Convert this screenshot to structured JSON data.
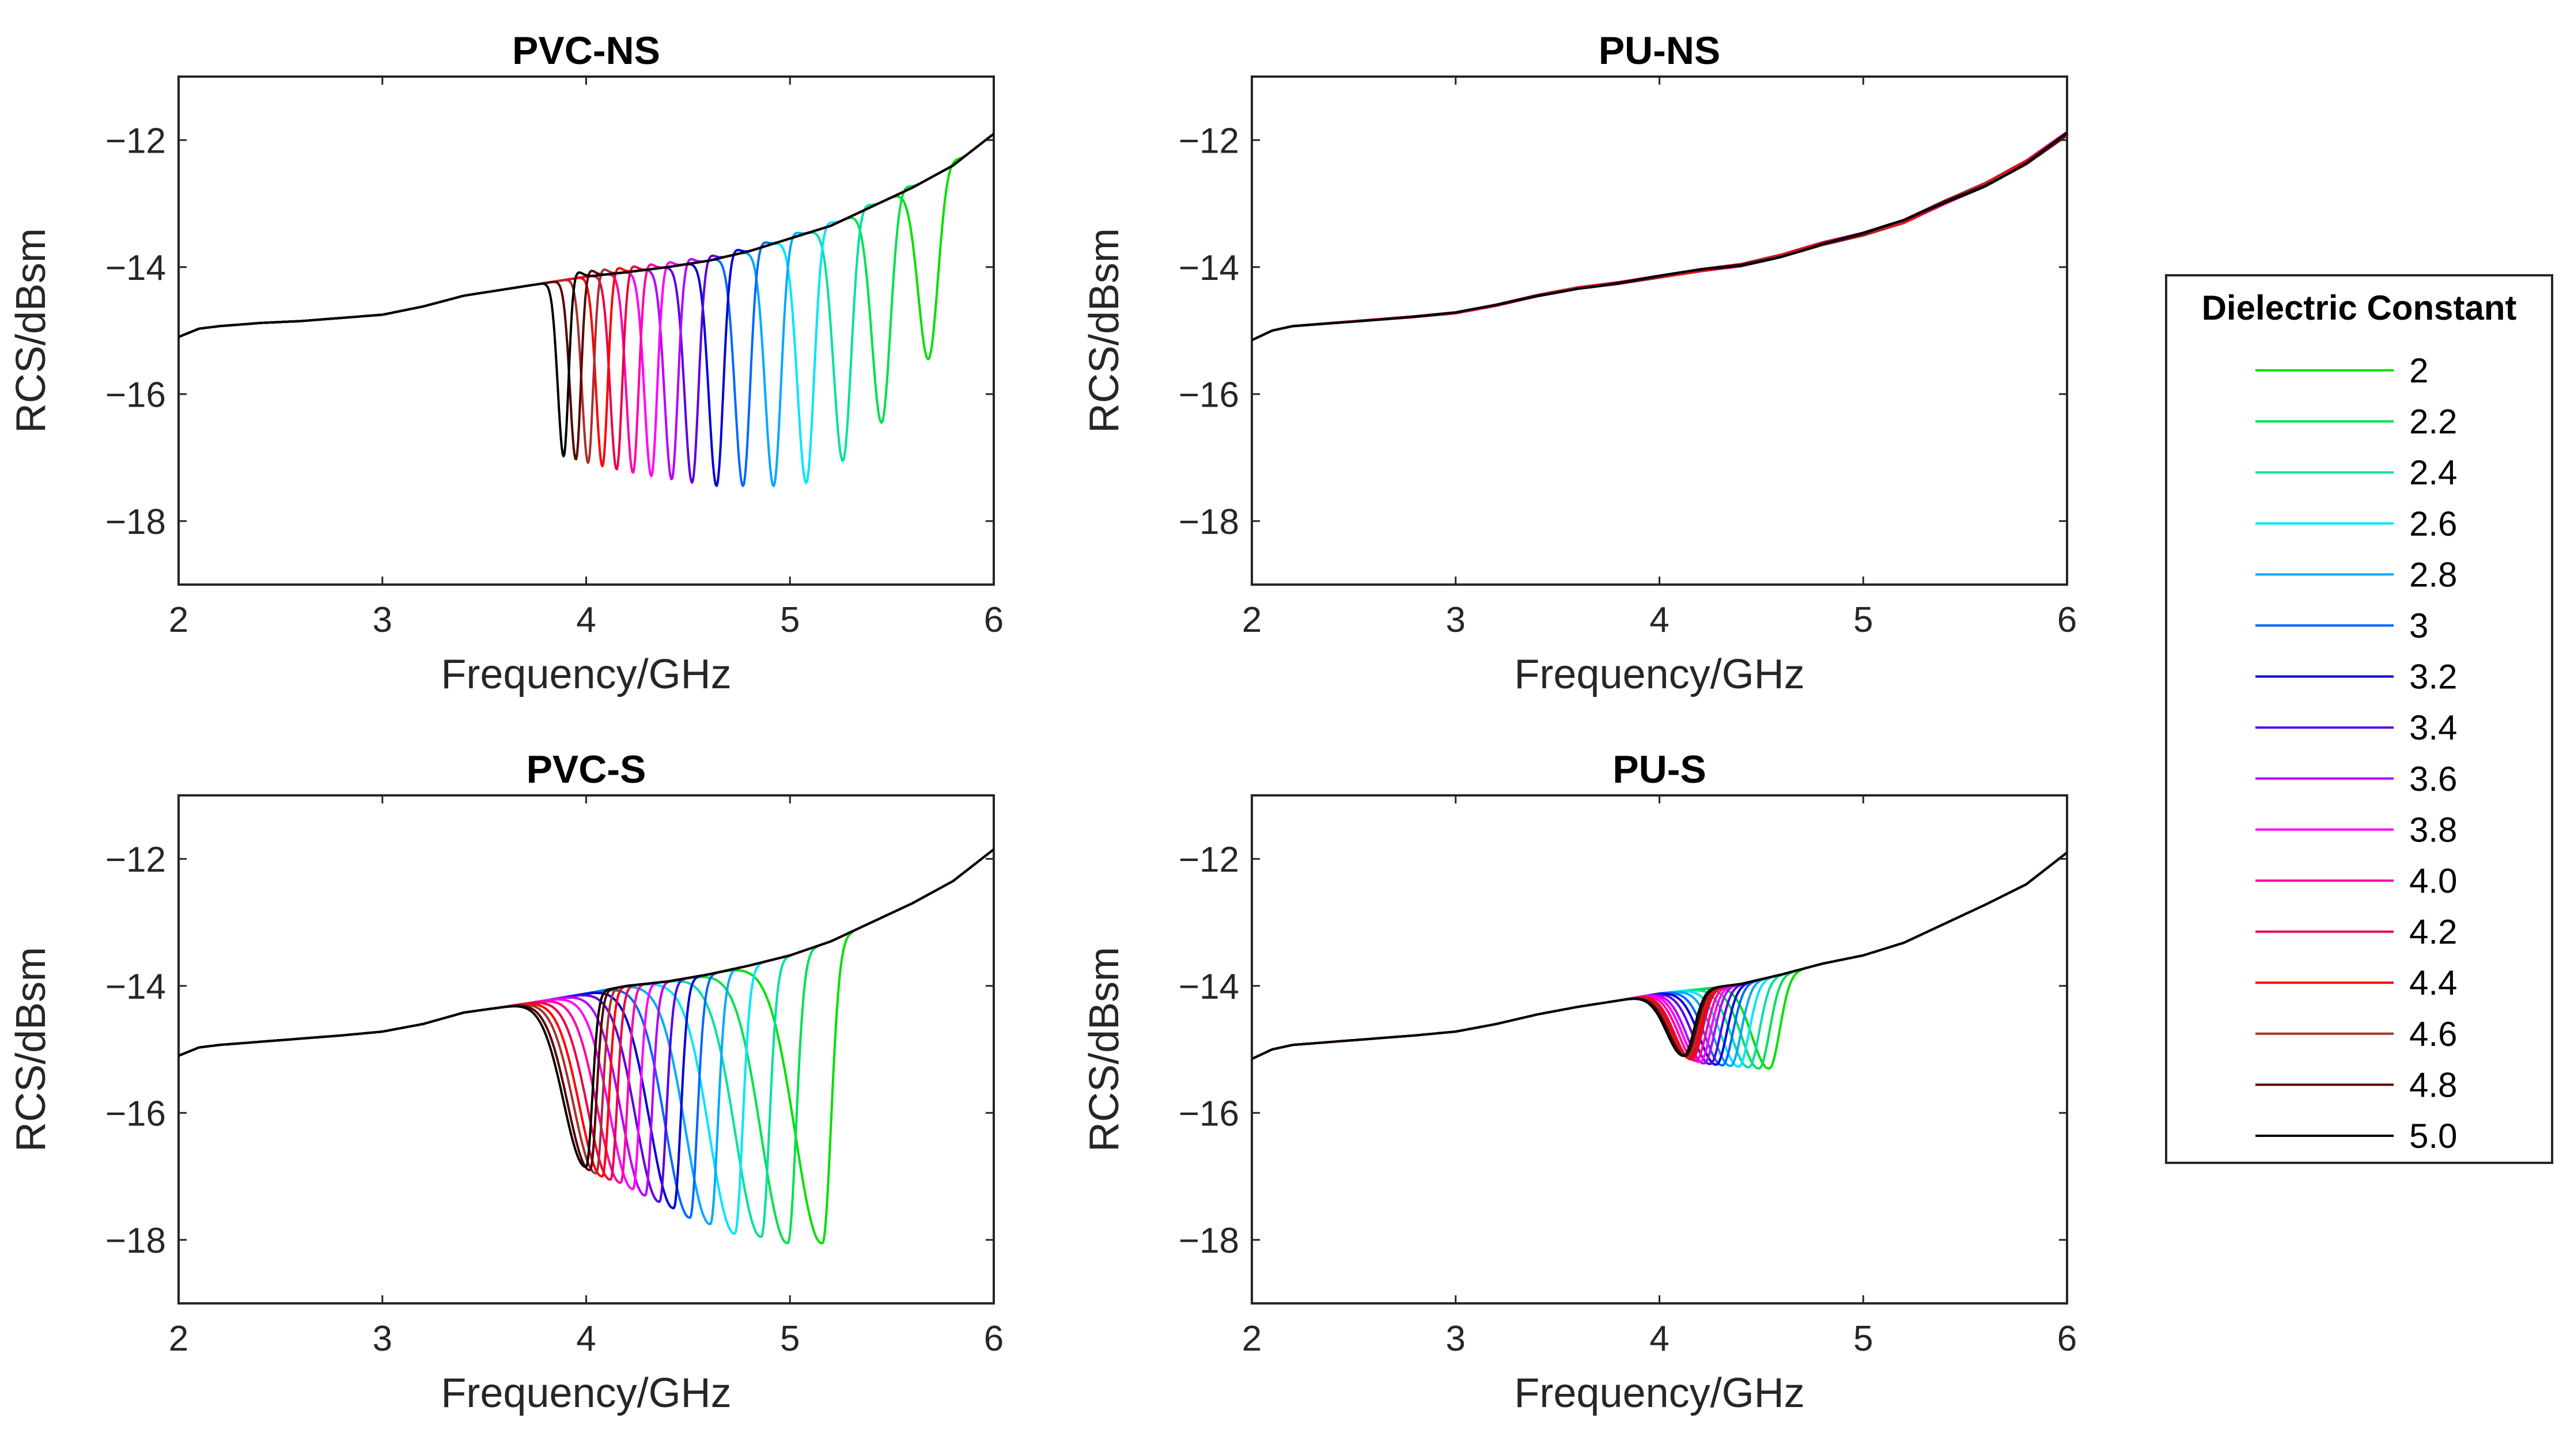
{
  "figure": {
    "ylabel": "RCS/dBsm",
    "xlabel": "Frequency/GHz"
  },
  "legend": {
    "title": "Dielectric Constant",
    "entries": [
      {
        "label": "2",
        "color": "#00e000"
      },
      {
        "label": "2.2",
        "color": "#00e050"
      },
      {
        "label": "2.4",
        "color": "#00e0a0"
      },
      {
        "label": "2.6",
        "color": "#00e5ff"
      },
      {
        "label": "2.8",
        "color": "#00a8ff"
      },
      {
        "label": "3",
        "color": "#0068ff"
      },
      {
        "label": "3.2",
        "color": "#0000d8"
      },
      {
        "label": "3.4",
        "color": "#5a00e0"
      },
      {
        "label": "3.6",
        "color": "#b400ff"
      },
      {
        "label": "3.8",
        "color": "#ff00ff"
      },
      {
        "label": "4.0",
        "color": "#ff00a8"
      },
      {
        "label": "4.2",
        "color": "#e8004a"
      },
      {
        "label": "4.4",
        "color": "#ff0000"
      },
      {
        "label": "4.6",
        "color": "#a83030"
      },
      {
        "label": "4.8",
        "color": "#5a0000"
      },
      {
        "label": "5.0",
        "color": "#000000"
      }
    ]
  },
  "chart_data": [
    {
      "type": "line",
      "title": "PVC-NS",
      "xlabel": "Frequency/GHz",
      "ylabel": "RCS/dBsm",
      "xlim": [
        2,
        6
      ],
      "ylim": [
        -19,
        -11
      ],
      "xticks": [
        2,
        3,
        4,
        5,
        6
      ],
      "yticks": [
        -18,
        -16,
        -14,
        -12
      ],
      "baseline": [
        [
          2.0,
          -15.1
        ],
        [
          2.1,
          -14.97
        ],
        [
          2.2,
          -14.93
        ],
        [
          2.4,
          -14.88
        ],
        [
          2.6,
          -14.85
        ],
        [
          2.8,
          -14.8
        ],
        [
          3.0,
          -14.75
        ],
        [
          3.2,
          -14.62
        ],
        [
          3.4,
          -14.45
        ],
        [
          3.6,
          -14.35
        ],
        [
          3.8,
          -14.25
        ],
        [
          4.0,
          -14.15
        ],
        [
          4.2,
          -14.08
        ],
        [
          4.4,
          -14.0
        ],
        [
          4.6,
          -13.9
        ],
        [
          4.8,
          -13.75
        ],
        [
          5.0,
          -13.55
        ],
        [
          5.2,
          -13.35
        ],
        [
          5.4,
          -13.05
        ],
        [
          5.6,
          -12.75
        ],
        [
          5.8,
          -12.4
        ],
        [
          6.0,
          -11.9
        ]
      ],
      "dip_shape": "notch",
      "series": [
        {
          "name": "2",
          "dip_freq": 5.68,
          "dip_min": -15.45
        },
        {
          "name": "2.2",
          "dip_freq": 5.45,
          "dip_min": -16.45
        },
        {
          "name": "2.4",
          "dip_freq": 5.26,
          "dip_min": -17.05
        },
        {
          "name": "2.6",
          "dip_freq": 5.08,
          "dip_min": -17.4
        },
        {
          "name": "2.8",
          "dip_freq": 4.92,
          "dip_min": -17.45
        },
        {
          "name": "3",
          "dip_freq": 4.77,
          "dip_min": -17.45
        },
        {
          "name": "3.2",
          "dip_freq": 4.64,
          "dip_min": -17.45
        },
        {
          "name": "3.4",
          "dip_freq": 4.52,
          "dip_min": -17.4
        },
        {
          "name": "3.6",
          "dip_freq": 4.42,
          "dip_min": -17.35
        },
        {
          "name": "3.8",
          "dip_freq": 4.32,
          "dip_min": -17.3
        },
        {
          "name": "4.0",
          "dip_freq": 4.23,
          "dip_min": -17.25
        },
        {
          "name": "4.2",
          "dip_freq": 4.15,
          "dip_min": -17.2
        },
        {
          "name": "4.4",
          "dip_freq": 4.08,
          "dip_min": -17.15
        },
        {
          "name": "4.6",
          "dip_freq": 4.01,
          "dip_min": -17.1
        },
        {
          "name": "4.8",
          "dip_freq": 3.95,
          "dip_min": -17.05
        },
        {
          "name": "5.0",
          "dip_freq": 3.89,
          "dip_min": -17.0
        }
      ]
    },
    {
      "type": "line",
      "title": "PU-NS",
      "xlabel": "Frequency/GHz",
      "ylabel": "RCS/dBsm",
      "xlim": [
        2,
        6
      ],
      "ylim": [
        -19,
        -11
      ],
      "xticks": [
        2,
        3,
        4,
        5,
        6
      ],
      "yticks": [
        -18,
        -16,
        -14,
        -12
      ],
      "baseline": [
        [
          2.0,
          -15.15
        ],
        [
          2.1,
          -15.0
        ],
        [
          2.2,
          -14.93
        ],
        [
          2.4,
          -14.88
        ],
        [
          2.6,
          -14.83
        ],
        [
          2.8,
          -14.78
        ],
        [
          3.0,
          -14.72
        ],
        [
          3.2,
          -14.6
        ],
        [
          3.4,
          -14.45
        ],
        [
          3.6,
          -14.33
        ],
        [
          3.8,
          -14.25
        ],
        [
          4.0,
          -14.15
        ],
        [
          4.2,
          -14.05
        ],
        [
          4.4,
          -13.97
        ],
        [
          4.6,
          -13.82
        ],
        [
          4.8,
          -13.63
        ],
        [
          5.0,
          -13.48
        ],
        [
          5.2,
          -13.28
        ],
        [
          5.4,
          -12.98
        ],
        [
          5.6,
          -12.7
        ],
        [
          5.8,
          -12.35
        ],
        [
          6.0,
          -11.9
        ]
      ],
      "dip_shape": "none",
      "series": [
        {
          "name": "2",
          "dip_freq": null,
          "dip_min": null
        },
        {
          "name": "2.2",
          "dip_freq": null,
          "dip_min": null
        },
        {
          "name": "2.4",
          "dip_freq": null,
          "dip_min": null
        },
        {
          "name": "2.6",
          "dip_freq": null,
          "dip_min": null
        },
        {
          "name": "2.8",
          "dip_freq": null,
          "dip_min": null
        },
        {
          "name": "3",
          "dip_freq": null,
          "dip_min": null
        },
        {
          "name": "3.2",
          "dip_freq": null,
          "dip_min": null
        },
        {
          "name": "3.4",
          "dip_freq": null,
          "dip_min": null
        },
        {
          "name": "3.6",
          "dip_freq": null,
          "dip_min": null
        },
        {
          "name": "3.8",
          "dip_freq": null,
          "dip_min": null
        },
        {
          "name": "4.0",
          "dip_freq": null,
          "dip_min": null
        },
        {
          "name": "4.2",
          "dip_freq": null,
          "dip_min": null
        },
        {
          "name": "4.4",
          "dip_freq": null,
          "dip_min": null
        },
        {
          "name": "4.6",
          "dip_freq": null,
          "dip_min": null
        },
        {
          "name": "4.8",
          "dip_freq": null,
          "dip_min": null
        },
        {
          "name": "5.0",
          "dip_freq": null,
          "dip_min": null
        }
      ]
    },
    {
      "type": "line",
      "title": "PVC-S",
      "xlabel": "Frequency/GHz",
      "ylabel": "RCS/dBsm",
      "xlim": [
        2,
        6
      ],
      "ylim": [
        -19,
        -11
      ],
      "xticks": [
        2,
        3,
        4,
        5,
        6
      ],
      "yticks": [
        -18,
        -16,
        -14,
        -12
      ],
      "baseline": [
        [
          2.0,
          -15.1
        ],
        [
          2.1,
          -14.97
        ],
        [
          2.2,
          -14.93
        ],
        [
          2.4,
          -14.88
        ],
        [
          2.6,
          -14.83
        ],
        [
          2.8,
          -14.78
        ],
        [
          3.0,
          -14.72
        ],
        [
          3.2,
          -14.6
        ],
        [
          3.4,
          -14.42
        ],
        [
          3.6,
          -14.33
        ],
        [
          3.8,
          -14.23
        ],
        [
          4.0,
          -14.12
        ],
        [
          4.2,
          -14.0
        ],
        [
          4.4,
          -13.93
        ],
        [
          4.6,
          -13.82
        ],
        [
          4.8,
          -13.68
        ],
        [
          5.0,
          -13.52
        ],
        [
          5.2,
          -13.3
        ],
        [
          5.4,
          -13.0
        ],
        [
          5.6,
          -12.7
        ],
        [
          5.8,
          -12.35
        ],
        [
          6.0,
          -11.85
        ]
      ],
      "dip_shape": "broad",
      "series": [
        {
          "name": "2",
          "dip_freq": 5.16,
          "dip_min": -18.05
        },
        {
          "name": "2.2",
          "dip_freq": 4.99,
          "dip_min": -18.05
        },
        {
          "name": "2.4",
          "dip_freq": 4.86,
          "dip_min": -17.95
        },
        {
          "name": "2.6",
          "dip_freq": 4.73,
          "dip_min": -17.9
        },
        {
          "name": "2.8",
          "dip_freq": 4.61,
          "dip_min": -17.75
        },
        {
          "name": "3",
          "dip_freq": 4.51,
          "dip_min": -17.65
        },
        {
          "name": "3.2",
          "dip_freq": 4.43,
          "dip_min": -17.5
        },
        {
          "name": "3.4",
          "dip_freq": 4.36,
          "dip_min": -17.4
        },
        {
          "name": "3.6",
          "dip_freq": 4.29,
          "dip_min": -17.3
        },
        {
          "name": "3.8",
          "dip_freq": 4.23,
          "dip_min": -17.2
        },
        {
          "name": "4.0",
          "dip_freq": 4.17,
          "dip_min": -17.1
        },
        {
          "name": "4.2",
          "dip_freq": 4.12,
          "dip_min": -17.05
        },
        {
          "name": "4.4",
          "dip_freq": 4.08,
          "dip_min": -17.0
        },
        {
          "name": "4.6",
          "dip_freq": 4.05,
          "dip_min": -16.95
        },
        {
          "name": "4.8",
          "dip_freq": 4.02,
          "dip_min": -16.9
        },
        {
          "name": "5.0",
          "dip_freq": 4.0,
          "dip_min": -16.85
        }
      ]
    },
    {
      "type": "line",
      "title": "PU-S",
      "xlabel": "Frequency/GHz",
      "ylabel": "RCS/dBsm",
      "xlim": [
        2,
        6
      ],
      "ylim": [
        -19,
        -11
      ],
      "xticks": [
        2,
        3,
        4,
        5,
        6
      ],
      "yticks": [
        -18,
        -16,
        -14,
        -12
      ],
      "baseline": [
        [
          2.0,
          -15.15
        ],
        [
          2.1,
          -15.0
        ],
        [
          2.2,
          -14.93
        ],
        [
          2.4,
          -14.88
        ],
        [
          2.6,
          -14.83
        ],
        [
          2.8,
          -14.78
        ],
        [
          3.0,
          -14.72
        ],
        [
          3.2,
          -14.6
        ],
        [
          3.4,
          -14.45
        ],
        [
          3.6,
          -14.33
        ],
        [
          3.8,
          -14.23
        ],
        [
          4.0,
          -14.12
        ],
        [
          4.2,
          -14.05
        ],
        [
          4.4,
          -13.97
        ],
        [
          4.6,
          -13.82
        ],
        [
          4.8,
          -13.65
        ],
        [
          5.0,
          -13.52
        ],
        [
          5.2,
          -13.32
        ],
        [
          5.4,
          -13.02
        ],
        [
          5.6,
          -12.72
        ],
        [
          5.8,
          -12.4
        ],
        [
          6.0,
          -11.9
        ]
      ],
      "dip_shape": "shallow",
      "series": [
        {
          "name": "2",
          "dip_freq": 4.54,
          "dip_min": -15.3
        },
        {
          "name": "2.2",
          "dip_freq": 4.49,
          "dip_min": -15.3
        },
        {
          "name": "2.4",
          "dip_freq": 4.44,
          "dip_min": -15.28
        },
        {
          "name": "2.6",
          "dip_freq": 4.39,
          "dip_min": -15.27
        },
        {
          "name": "2.8",
          "dip_freq": 4.35,
          "dip_min": -15.26
        },
        {
          "name": "3",
          "dip_freq": 4.31,
          "dip_min": -15.25
        },
        {
          "name": "3.2",
          "dip_freq": 4.28,
          "dip_min": -15.24
        },
        {
          "name": "3.4",
          "dip_freq": 4.25,
          "dip_min": -15.23
        },
        {
          "name": "3.6",
          "dip_freq": 4.22,
          "dip_min": -15.22
        },
        {
          "name": "3.8",
          "dip_freq": 4.2,
          "dip_min": -15.2
        },
        {
          "name": "4.0",
          "dip_freq": 4.18,
          "dip_min": -15.18
        },
        {
          "name": "4.2",
          "dip_freq": 4.16,
          "dip_min": -15.16
        },
        {
          "name": "4.4",
          "dip_freq": 4.15,
          "dip_min": -15.14
        },
        {
          "name": "4.6",
          "dip_freq": 4.14,
          "dip_min": -15.12
        },
        {
          "name": "4.8",
          "dip_freq": 4.13,
          "dip_min": -15.1
        },
        {
          "name": "5.0",
          "dip_freq": 4.12,
          "dip_min": -15.1
        }
      ]
    }
  ]
}
